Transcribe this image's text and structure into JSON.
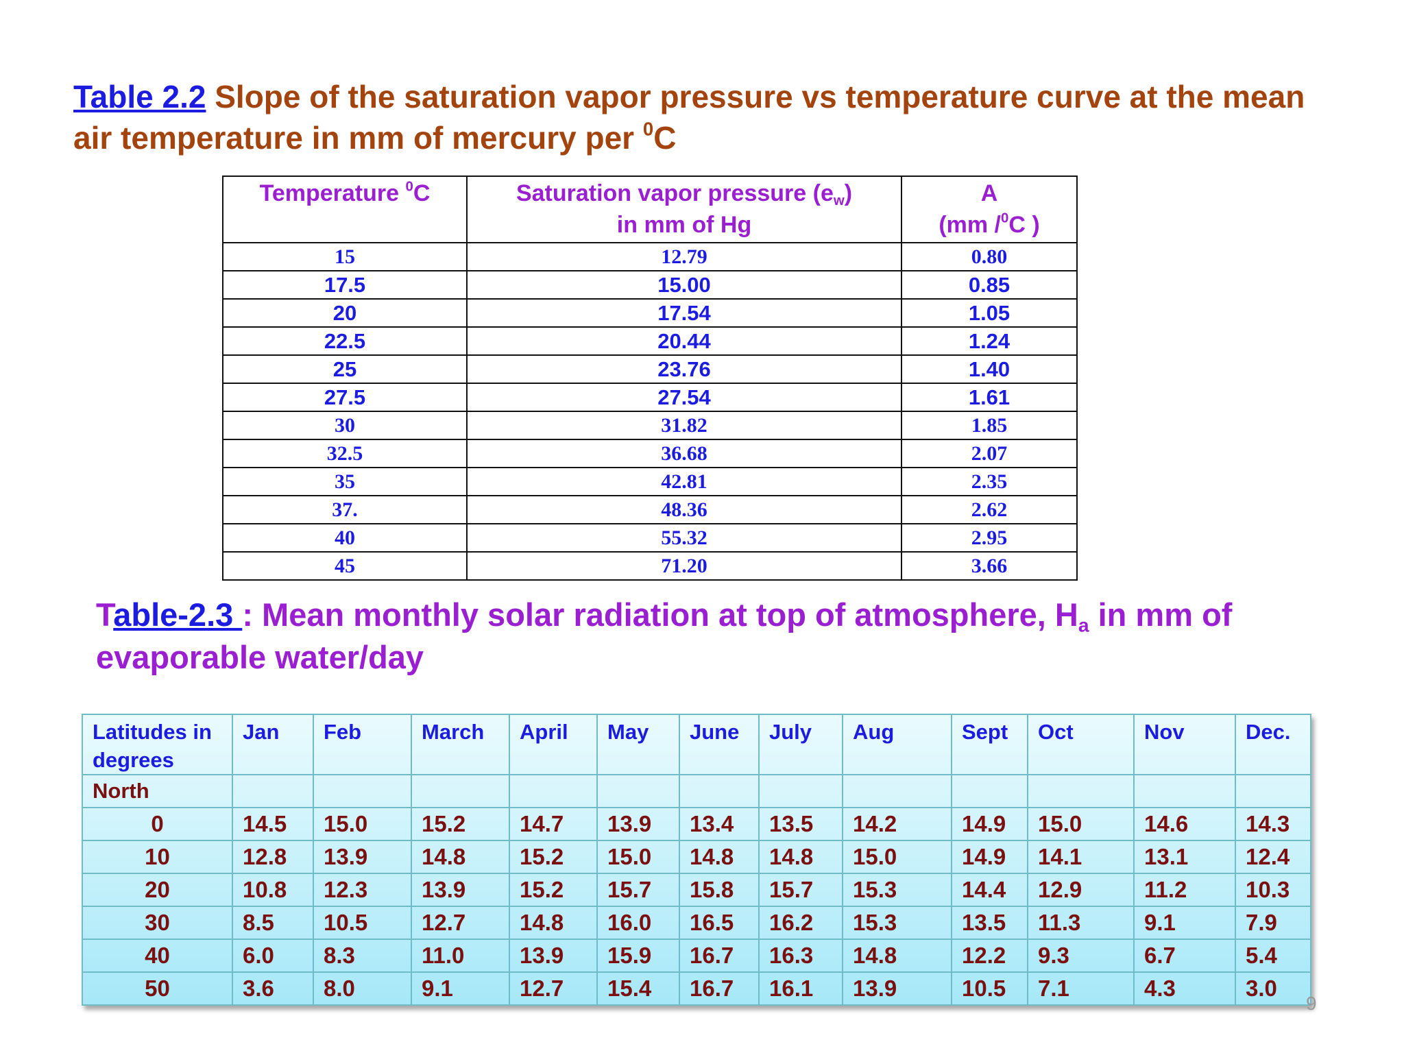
{
  "table_2_2": {
    "label": "Table 2.2",
    "title": " Slope of the saturation vapor pressure vs   temperature curve at the mean air temperature in mm of mercury per ",
    "title_sup": "0",
    "title_end": "C",
    "header": [
      [
        "Temperature ",
        "0",
        "C"
      ],
      [
        "Saturation vapor pressure (e",
        "w",
        ")",
        "in mm of Hg"
      ],
      [
        "A",
        "(mm /",
        "0",
        "C )"
      ]
    ],
    "rows": [
      [
        "15",
        "12.79",
        "0.80"
      ],
      [
        "17.5",
        "15.00",
        "0.85"
      ],
      [
        "20",
        "17.54",
        "1.05"
      ],
      [
        "22.5",
        "20.44",
        "1.24"
      ],
      [
        "25",
        "23.76",
        "1.40"
      ],
      [
        "27.5",
        "27.54",
        "1.61"
      ],
      [
        "30",
        "31.82",
        "1.85"
      ],
      [
        "32.5",
        "36.68",
        "2.07"
      ],
      [
        "35",
        "42.81",
        "2.35"
      ],
      [
        "37.",
        "48.36",
        "2.62"
      ],
      [
        "40",
        "55.32",
        "2.95"
      ],
      [
        "45",
        "71.20",
        "3.66"
      ]
    ]
  },
  "table_2_3": {
    "title_first": "T",
    "label": "able-2.3 ",
    "title": ": Mean monthly solar radiation at top of atmosphere, H",
    "title_sub": "a",
    "title_end": " in mm of evaporable water/day",
    "header": [
      "Latitudes in  degrees",
      "Jan",
      "Feb",
      "March",
      "April",
      "May",
      "June",
      "July",
      "Aug",
      "Sept",
      "Oct",
      "Nov",
      "Dec."
    ],
    "hemisphere": "North",
    "rows": [
      [
        "0",
        "14.5",
        "15.0",
        "15.2",
        "14.7",
        "13.9",
        "13.4",
        "13.5",
        "14.2",
        "14.9",
        "15.0",
        "14.6",
        "14.3"
      ],
      [
        "10",
        "12.8",
        "13.9",
        "14.8",
        "15.2",
        "15.0",
        "14.8",
        "14.8",
        "15.0",
        "14.9",
        "14.1",
        "13.1",
        "12.4"
      ],
      [
        "20",
        "10.8",
        "12.3",
        "13.9",
        "15.2",
        "15.7",
        "15.8",
        "15.7",
        "15.3",
        "14.4",
        "12.9",
        "11.2",
        "10.3"
      ],
      [
        "30",
        "8.5",
        "10.5",
        "12.7",
        "14.8",
        "16.0",
        "16.5",
        "16.2",
        "15.3",
        "13.5",
        "11.3",
        "9.1",
        "7.9"
      ],
      [
        "40",
        "6.0",
        "8.3",
        "11.0",
        "13.9",
        "15.9",
        "16.7",
        "16.3",
        "14.8",
        "12.2",
        "9.3",
        "6.7",
        "5.4"
      ],
      [
        "50",
        "3.6",
        "8.0",
        "9.1",
        "12.7",
        "15.4",
        "16.7",
        "16.1",
        "13.9",
        "10.5",
        "7.1",
        "4.3",
        "3.0"
      ]
    ]
  },
  "page_number": "9"
}
